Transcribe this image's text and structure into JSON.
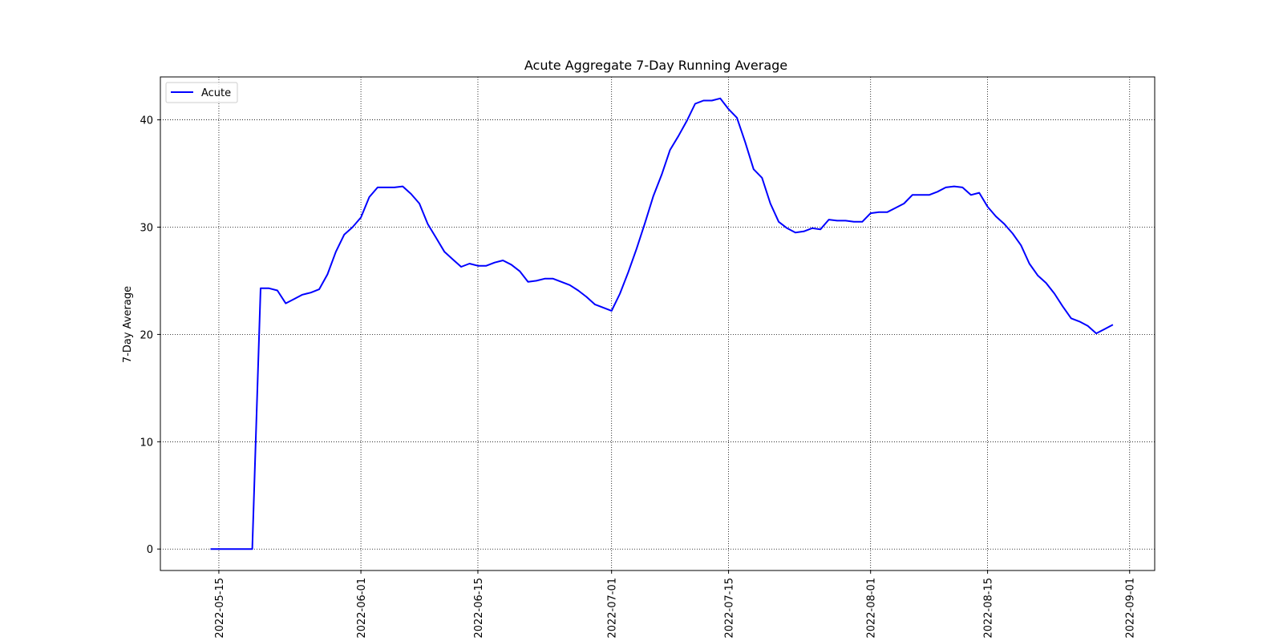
{
  "chart_data": {
    "type": "line",
    "title": "Acute Aggregate 7-Day Running Average",
    "xlabel": "",
    "ylabel": "7-Day Average",
    "xlim": [
      "2022-05-08",
      "2022-09-04"
    ],
    "ylim": [
      -2,
      44
    ],
    "yticks": [
      0,
      10,
      20,
      30,
      40
    ],
    "xticks": [
      "2022-05-15",
      "2022-06-01",
      "2022-06-15",
      "2022-07-01",
      "2022-07-15",
      "2022-08-01",
      "2022-08-15",
      "2022-09-01"
    ],
    "grid": true,
    "legend_position": "top-left",
    "colors": {
      "line": "#0000ff",
      "grid": "#000000"
    },
    "series": [
      {
        "name": "Acute",
        "x": [
          "2022-05-14",
          "2022-05-15",
          "2022-05-16",
          "2022-05-17",
          "2022-05-18",
          "2022-05-19",
          "2022-05-20",
          "2022-05-21",
          "2022-05-22",
          "2022-05-23",
          "2022-05-24",
          "2022-05-25",
          "2022-05-26",
          "2022-05-27",
          "2022-05-28",
          "2022-05-29",
          "2022-05-30",
          "2022-05-31",
          "2022-06-01",
          "2022-06-02",
          "2022-06-03",
          "2022-06-04",
          "2022-06-05",
          "2022-06-06",
          "2022-06-07",
          "2022-06-08",
          "2022-06-09",
          "2022-06-10",
          "2022-06-11",
          "2022-06-12",
          "2022-06-13",
          "2022-06-14",
          "2022-06-15",
          "2022-06-16",
          "2022-06-17",
          "2022-06-18",
          "2022-06-19",
          "2022-06-20",
          "2022-06-21",
          "2022-06-22",
          "2022-06-23",
          "2022-06-24",
          "2022-06-25",
          "2022-06-26",
          "2022-06-27",
          "2022-06-28",
          "2022-06-29",
          "2022-06-30",
          "2022-07-01",
          "2022-07-02",
          "2022-07-03",
          "2022-07-04",
          "2022-07-05",
          "2022-07-06",
          "2022-07-07",
          "2022-07-08",
          "2022-07-09",
          "2022-07-10",
          "2022-07-11",
          "2022-07-12",
          "2022-07-13",
          "2022-07-14",
          "2022-07-15",
          "2022-07-16",
          "2022-07-17",
          "2022-07-18",
          "2022-07-19",
          "2022-07-20",
          "2022-07-21",
          "2022-07-22",
          "2022-07-23",
          "2022-07-24",
          "2022-07-25",
          "2022-07-26",
          "2022-07-27",
          "2022-07-28",
          "2022-07-29",
          "2022-07-30",
          "2022-07-31",
          "2022-08-01",
          "2022-08-02",
          "2022-08-03",
          "2022-08-04",
          "2022-08-05",
          "2022-08-06",
          "2022-08-07",
          "2022-08-08",
          "2022-08-09",
          "2022-08-10",
          "2022-08-11",
          "2022-08-12",
          "2022-08-13",
          "2022-08-14",
          "2022-08-15",
          "2022-08-16",
          "2022-08-17",
          "2022-08-18",
          "2022-08-19",
          "2022-08-20",
          "2022-08-21",
          "2022-08-22",
          "2022-08-23",
          "2022-08-24",
          "2022-08-25",
          "2022-08-26",
          "2022-08-27",
          "2022-08-28",
          "2022-08-29",
          "2022-08-30"
        ],
        "y": [
          0,
          0,
          0,
          0,
          0,
          0,
          24.3,
          24.3,
          24.1,
          22.9,
          23.3,
          23.7,
          23.9,
          24.2,
          25.6,
          27.7,
          29.3,
          30.0,
          30.9,
          32.8,
          33.7,
          33.7,
          33.7,
          33.8,
          33.1,
          32.2,
          30.3,
          29.0,
          27.7,
          27.0,
          26.3,
          26.6,
          26.4,
          26.4,
          26.7,
          26.9,
          26.5,
          25.9,
          24.9,
          25.0,
          25.2,
          25.2,
          24.9,
          24.6,
          24.1,
          23.5,
          22.8,
          22.5,
          22.2,
          23.8,
          25.8,
          28.0,
          30.4,
          32.9,
          34.9,
          37.2,
          38.5,
          39.9,
          41.5,
          41.8,
          41.8,
          42.0,
          41.0,
          40.2,
          37.9,
          35.4,
          34.6,
          32.2,
          30.5,
          29.9,
          29.5,
          29.6,
          29.9,
          29.8,
          30.7,
          30.6,
          30.6,
          30.5,
          30.5,
          31.3,
          31.4,
          31.4,
          31.8,
          32.2,
          33.0,
          33.0,
          33.0,
          33.3,
          33.7,
          33.8,
          33.7,
          33.0,
          33.2,
          31.9,
          31.0,
          30.3,
          29.4,
          28.3,
          26.6,
          25.5,
          24.8,
          23.8,
          22.6,
          21.5,
          21.2,
          20.8,
          20.1,
          20.5,
          20.9
        ]
      }
    ]
  }
}
